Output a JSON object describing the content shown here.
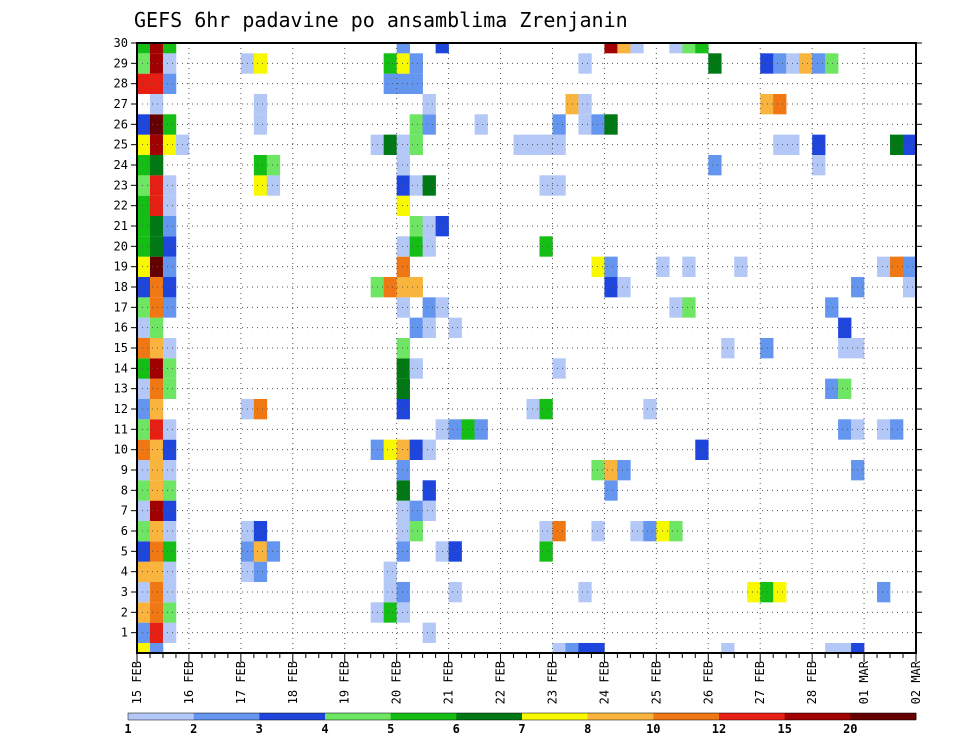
{
  "chart_data": {
    "type": "heatmap",
    "title": "GEFS 6hr padavine po ansamblima Zrenjanin",
    "xlabel": "",
    "ylabel": "",
    "x_range": [
      15,
      30
    ],
    "y_range": [
      0,
      30
    ],
    "y_ticks": [
      1,
      2,
      3,
      4,
      5,
      6,
      7,
      8,
      9,
      10,
      11,
      12,
      13,
      14,
      15,
      16,
      17,
      18,
      19,
      20,
      21,
      22,
      23,
      24,
      25,
      26,
      27,
      28,
      29,
      30
    ],
    "x_ticks": [
      {
        "x": 15,
        "label": "15 FEB"
      },
      {
        "x": 16,
        "label": "16 FEB"
      },
      {
        "x": 17,
        "label": "17 FEB"
      },
      {
        "x": 18,
        "label": "18 FEB"
      },
      {
        "x": 19,
        "label": "19 FEB"
      },
      {
        "x": 20,
        "label": "20 FEB"
      },
      {
        "x": 21,
        "label": "21 FEB"
      },
      {
        "x": 22,
        "label": "22 FEB"
      },
      {
        "x": 23,
        "label": "23 FEB"
      },
      {
        "x": 24,
        "label": "24 FEB"
      },
      {
        "x": 25,
        "label": "25 FEB"
      },
      {
        "x": 26,
        "label": "26 FEB"
      },
      {
        "x": 27,
        "label": "27 FEB"
      },
      {
        "x": 28,
        "label": "28 FEB"
      },
      {
        "x": 29,
        "label": "01 MAR"
      },
      {
        "x": 30,
        "label": "02 MAR"
      }
    ],
    "grid": true,
    "colorbar": {
      "labels": [
        "1",
        "2",
        "3",
        "4",
        "5",
        "6",
        "7",
        "8",
        "10",
        "12",
        "15",
        "20"
      ],
      "colors": [
        "#b4c8f8",
        "#6496f0",
        "#1e46dc",
        "#6ee664",
        "#14be14",
        "#007814",
        "#f8f800",
        "#f8b43c",
        "#f07814",
        "#e61e14",
        "#a00000",
        "#640000"
      ]
    },
    "cells": [
      [
        15.0,
        0,
        "#f8f800"
      ],
      [
        15.25,
        0,
        "#6496f0"
      ],
      [
        23.0,
        0,
        "#b4c8f8"
      ],
      [
        23.25,
        0,
        "#6496f0"
      ],
      [
        23.5,
        0,
        "#1e46dc"
      ],
      [
        23.75,
        0,
        "#1e46dc"
      ],
      [
        26.25,
        0,
        "#b4c8f8"
      ],
      [
        28.25,
        0,
        "#b4c8f8"
      ],
      [
        28.5,
        0,
        "#b4c8f8"
      ],
      [
        28.75,
        0,
        "#1e46dc"
      ],
      [
        15.0,
        1,
        "#6496f0"
      ],
      [
        15.25,
        1,
        "#e61e14"
      ],
      [
        15.5,
        1,
        "#b4c8f8"
      ],
      [
        20.5,
        1,
        "#b4c8f8"
      ],
      [
        15.0,
        2,
        "#f8b43c"
      ],
      [
        15.25,
        2,
        "#f07814"
      ],
      [
        15.5,
        2,
        "#6ee664"
      ],
      [
        19.5,
        2,
        "#b4c8f8"
      ],
      [
        19.75,
        2,
        "#14be14"
      ],
      [
        20.0,
        2,
        "#b4c8f8"
      ],
      [
        15.0,
        3,
        "#b4c8f8"
      ],
      [
        15.25,
        3,
        "#f07814"
      ],
      [
        15.5,
        3,
        "#b4c8f8"
      ],
      [
        19.75,
        3,
        "#b4c8f8"
      ],
      [
        20.0,
        3,
        "#6496f0"
      ],
      [
        21.0,
        3,
        "#b4c8f8"
      ],
      [
        23.5,
        3,
        "#b4c8f8"
      ],
      [
        26.75,
        3,
        "#f8f800"
      ],
      [
        27.0,
        3,
        "#14be14"
      ],
      [
        27.25,
        3,
        "#f8f800"
      ],
      [
        29.25,
        3,
        "#6496f0"
      ],
      [
        15.0,
        4,
        "#f8b43c"
      ],
      [
        15.25,
        4,
        "#f8b43c"
      ],
      [
        15.5,
        4,
        "#b4c8f8"
      ],
      [
        17.0,
        4,
        "#b4c8f8"
      ],
      [
        17.25,
        4,
        "#6496f0"
      ],
      [
        19.75,
        4,
        "#b4c8f8"
      ],
      [
        15.0,
        5,
        "#1e46dc"
      ],
      [
        15.25,
        5,
        "#f07814"
      ],
      [
        15.5,
        5,
        "#14be14"
      ],
      [
        17.0,
        5,
        "#6496f0"
      ],
      [
        17.25,
        5,
        "#f8b43c"
      ],
      [
        17.5,
        5,
        "#6496f0"
      ],
      [
        20.0,
        5,
        "#6496f0"
      ],
      [
        20.75,
        5,
        "#b4c8f8"
      ],
      [
        21.0,
        5,
        "#1e46dc"
      ],
      [
        22.75,
        5,
        "#14be14"
      ],
      [
        15.0,
        6,
        "#6ee664"
      ],
      [
        15.25,
        6,
        "#f8b43c"
      ],
      [
        15.5,
        6,
        "#b4c8f8"
      ],
      [
        17.0,
        6,
        "#b4c8f8"
      ],
      [
        17.25,
        6,
        "#1e46dc"
      ],
      [
        20.0,
        6,
        "#b4c8f8"
      ],
      [
        20.25,
        6,
        "#6ee664"
      ],
      [
        22.75,
        6,
        "#b4c8f8"
      ],
      [
        23.0,
        6,
        "#f07814"
      ],
      [
        23.75,
        6,
        "#b4c8f8"
      ],
      [
        24.5,
        6,
        "#b4c8f8"
      ],
      [
        24.75,
        6,
        "#6496f0"
      ],
      [
        25.0,
        6,
        "#f8f800"
      ],
      [
        25.25,
        6,
        "#6ee664"
      ],
      [
        15.0,
        7,
        "#b4c8f8"
      ],
      [
        15.25,
        7,
        "#a00000"
      ],
      [
        15.5,
        7,
        "#1e46dc"
      ],
      [
        20.0,
        7,
        "#b4c8f8"
      ],
      [
        20.25,
        7,
        "#6496f0"
      ],
      [
        20.5,
        7,
        "#b4c8f8"
      ],
      [
        15.0,
        8,
        "#6ee664"
      ],
      [
        15.25,
        8,
        "#f8b43c"
      ],
      [
        15.5,
        8,
        "#6ee664"
      ],
      [
        20.0,
        8,
        "#007814"
      ],
      [
        20.5,
        8,
        "#1e46dc"
      ],
      [
        24.0,
        8,
        "#6496f0"
      ],
      [
        15.0,
        9,
        "#b4c8f8"
      ],
      [
        15.25,
        9,
        "#f8b43c"
      ],
      [
        15.5,
        9,
        "#b4c8f8"
      ],
      [
        20.0,
        9,
        "#6496f0"
      ],
      [
        23.75,
        9,
        "#6ee664"
      ],
      [
        24.0,
        9,
        "#f8b43c"
      ],
      [
        24.25,
        9,
        "#6496f0"
      ],
      [
        28.75,
        9,
        "#6496f0"
      ],
      [
        15.0,
        10,
        "#f07814"
      ],
      [
        15.25,
        10,
        "#f8b43c"
      ],
      [
        15.5,
        10,
        "#1e46dc"
      ],
      [
        19.5,
        10,
        "#6496f0"
      ],
      [
        19.75,
        10,
        "#f8f800"
      ],
      [
        20.0,
        10,
        "#f8b43c"
      ],
      [
        20.25,
        10,
        "#1e46dc"
      ],
      [
        20.5,
        10,
        "#b4c8f8"
      ],
      [
        25.75,
        10,
        "#1e46dc"
      ],
      [
        15.0,
        11,
        "#6ee664"
      ],
      [
        15.25,
        11,
        "#e61e14"
      ],
      [
        15.5,
        11,
        "#b4c8f8"
      ],
      [
        20.75,
        11,
        "#b4c8f8"
      ],
      [
        21.0,
        11,
        "#6496f0"
      ],
      [
        21.25,
        11,
        "#14be14"
      ],
      [
        21.5,
        11,
        "#6496f0"
      ],
      [
        28.5,
        11,
        "#6496f0"
      ],
      [
        28.75,
        11,
        "#b4c8f8"
      ],
      [
        29.25,
        11,
        "#b4c8f8"
      ],
      [
        29.5,
        11,
        "#6496f0"
      ],
      [
        15.0,
        12,
        "#6496f0"
      ],
      [
        15.25,
        12,
        "#f8b43c"
      ],
      [
        17.0,
        12,
        "#b4c8f8"
      ],
      [
        17.25,
        12,
        "#f07814"
      ],
      [
        20.0,
        12,
        "#1e46dc"
      ],
      [
        22.5,
        12,
        "#b4c8f8"
      ],
      [
        22.75,
        12,
        "#14be14"
      ],
      [
        24.75,
        12,
        "#b4c8f8"
      ],
      [
        15.0,
        13,
        "#b4c8f8"
      ],
      [
        15.25,
        13,
        "#f07814"
      ],
      [
        15.5,
        13,
        "#6ee664"
      ],
      [
        20.0,
        13,
        "#007814"
      ],
      [
        28.25,
        13,
        "#6496f0"
      ],
      [
        28.5,
        13,
        "#6ee664"
      ],
      [
        15.0,
        14,
        "#14be14"
      ],
      [
        15.25,
        14,
        "#a00000"
      ],
      [
        15.5,
        14,
        "#6ee664"
      ],
      [
        20.0,
        14,
        "#007814"
      ],
      [
        20.25,
        14,
        "#b4c8f8"
      ],
      [
        23.0,
        14,
        "#b4c8f8"
      ],
      [
        15.0,
        15,
        "#f07814"
      ],
      [
        15.25,
        15,
        "#f8b43c"
      ],
      [
        15.5,
        15,
        "#b4c8f8"
      ],
      [
        20.0,
        15,
        "#6ee664"
      ],
      [
        26.25,
        15,
        "#b4c8f8"
      ],
      [
        27.0,
        15,
        "#6496f0"
      ],
      [
        28.5,
        15,
        "#b4c8f8"
      ],
      [
        28.75,
        15,
        "#b4c8f8"
      ],
      [
        15.0,
        16,
        "#b4c8f8"
      ],
      [
        15.25,
        16,
        "#6ee664"
      ],
      [
        20.25,
        16,
        "#6496f0"
      ],
      [
        20.5,
        16,
        "#b4c8f8"
      ],
      [
        21.0,
        16,
        "#b4c8f8"
      ],
      [
        28.5,
        16,
        "#1e46dc"
      ],
      [
        15.0,
        17,
        "#6ee664"
      ],
      [
        15.25,
        17,
        "#f07814"
      ],
      [
        15.5,
        17,
        "#6496f0"
      ],
      [
        20.0,
        17,
        "#b4c8f8"
      ],
      [
        20.5,
        17,
        "#6496f0"
      ],
      [
        20.75,
        17,
        "#b4c8f8"
      ],
      [
        25.25,
        17,
        "#b4c8f8"
      ],
      [
        25.5,
        17,
        "#6ee664"
      ],
      [
        28.25,
        17,
        "#6496f0"
      ],
      [
        15.0,
        18,
        "#1e46dc"
      ],
      [
        15.25,
        18,
        "#f07814"
      ],
      [
        15.5,
        18,
        "#1e46dc"
      ],
      [
        19.5,
        18,
        "#6ee664"
      ],
      [
        19.75,
        18,
        "#f07814"
      ],
      [
        20.0,
        18,
        "#f8b43c"
      ],
      [
        20.25,
        18,
        "#f8b43c"
      ],
      [
        24.0,
        18,
        "#1e46dc"
      ],
      [
        24.25,
        18,
        "#b4c8f8"
      ],
      [
        28.75,
        18,
        "#6496f0"
      ],
      [
        29.75,
        18,
        "#b4c8f8"
      ],
      [
        15.0,
        19,
        "#f8f800"
      ],
      [
        15.25,
        19,
        "#640000"
      ],
      [
        15.5,
        19,
        "#6496f0"
      ],
      [
        20.0,
        19,
        "#f07814"
      ],
      [
        23.75,
        19,
        "#f8f800"
      ],
      [
        24.0,
        19,
        "#6496f0"
      ],
      [
        25.0,
        19,
        "#b4c8f8"
      ],
      [
        25.5,
        19,
        "#b4c8f8"
      ],
      [
        26.5,
        19,
        "#b4c8f8"
      ],
      [
        29.25,
        19,
        "#b4c8f8"
      ],
      [
        29.5,
        19,
        "#f07814"
      ],
      [
        29.75,
        19,
        "#6496f0"
      ],
      [
        15.0,
        20,
        "#14be14"
      ],
      [
        15.25,
        20,
        "#007814"
      ],
      [
        15.5,
        20,
        "#1e46dc"
      ],
      [
        20.0,
        20,
        "#b4c8f8"
      ],
      [
        20.25,
        20,
        "#14be14"
      ],
      [
        20.5,
        20,
        "#b4c8f8"
      ],
      [
        22.75,
        20,
        "#14be14"
      ],
      [
        15.0,
        21,
        "#14be14"
      ],
      [
        15.25,
        21,
        "#007814"
      ],
      [
        15.5,
        21,
        "#6496f0"
      ],
      [
        20.25,
        21,
        "#6ee664"
      ],
      [
        20.5,
        21,
        "#b4c8f8"
      ],
      [
        20.75,
        21,
        "#1e46dc"
      ],
      [
        15.0,
        22,
        "#14be14"
      ],
      [
        15.25,
        22,
        "#e61e14"
      ],
      [
        15.5,
        22,
        "#b4c8f8"
      ],
      [
        20.0,
        22,
        "#f8f800"
      ],
      [
        15.0,
        23,
        "#6ee664"
      ],
      [
        15.25,
        23,
        "#e61e14"
      ],
      [
        15.5,
        23,
        "#b4c8f8"
      ],
      [
        17.25,
        23,
        "#f8f800"
      ],
      [
        17.5,
        23,
        "#b4c8f8"
      ],
      [
        20.0,
        23,
        "#1e46dc"
      ],
      [
        20.25,
        23,
        "#b4c8f8"
      ],
      [
        20.5,
        23,
        "#007814"
      ],
      [
        22.75,
        23,
        "#b4c8f8"
      ],
      [
        23.0,
        23,
        "#b4c8f8"
      ],
      [
        15.0,
        24,
        "#14be14"
      ],
      [
        15.25,
        24,
        "#007814"
      ],
      [
        17.25,
        24,
        "#14be14"
      ],
      [
        17.5,
        24,
        "#6ee664"
      ],
      [
        20.0,
        24,
        "#b4c8f8"
      ],
      [
        26.0,
        24,
        "#6496f0"
      ],
      [
        28.0,
        24,
        "#b4c8f8"
      ],
      [
        15.0,
        25,
        "#f8f800"
      ],
      [
        15.25,
        25,
        "#a00000"
      ],
      [
        15.5,
        25,
        "#f8f800"
      ],
      [
        15.75,
        25,
        "#b4c8f8"
      ],
      [
        19.5,
        25,
        "#b4c8f8"
      ],
      [
        19.75,
        25,
        "#007814"
      ],
      [
        20.0,
        25,
        "#b4c8f8"
      ],
      [
        20.25,
        25,
        "#6ee664"
      ],
      [
        22.25,
        25,
        "#b4c8f8"
      ],
      [
        22.5,
        25,
        "#b4c8f8"
      ],
      [
        22.75,
        25,
        "#b4c8f8"
      ],
      [
        23.0,
        25,
        "#b4c8f8"
      ],
      [
        27.25,
        25,
        "#b4c8f8"
      ],
      [
        27.5,
        25,
        "#b4c8f8"
      ],
      [
        28.0,
        25,
        "#1e46dc"
      ],
      [
        29.5,
        25,
        "#007814"
      ],
      [
        29.75,
        25,
        "#1e46dc"
      ],
      [
        15.0,
        26,
        "#1e46dc"
      ],
      [
        15.25,
        26,
        "#640000"
      ],
      [
        15.5,
        26,
        "#14be14"
      ],
      [
        17.25,
        26,
        "#b4c8f8"
      ],
      [
        20.25,
        26,
        "#6ee664"
      ],
      [
        20.5,
        26,
        "#6496f0"
      ],
      [
        21.5,
        26,
        "#b4c8f8"
      ],
      [
        23.0,
        26,
        "#6496f0"
      ],
      [
        23.5,
        26,
        "#b4c8f8"
      ],
      [
        23.75,
        26,
        "#6496f0"
      ],
      [
        24.0,
        26,
        "#007814"
      ],
      [
        15.25,
        27,
        "#b4c8f8"
      ],
      [
        17.25,
        27,
        "#b4c8f8"
      ],
      [
        20.5,
        27,
        "#b4c8f8"
      ],
      [
        23.25,
        27,
        "#f8b43c"
      ],
      [
        23.5,
        27,
        "#b4c8f8"
      ],
      [
        27.0,
        27,
        "#f8b43c"
      ],
      [
        27.25,
        27,
        "#f07814"
      ],
      [
        15.0,
        28,
        "#e61e14"
      ],
      [
        15.25,
        28,
        "#e61e14"
      ],
      [
        15.5,
        28,
        "#6496f0"
      ],
      [
        19.75,
        28,
        "#6496f0"
      ],
      [
        20.0,
        28,
        "#6496f0"
      ],
      [
        20.25,
        28,
        "#6496f0"
      ],
      [
        15.0,
        29,
        "#6ee664"
      ],
      [
        15.25,
        29,
        "#a00000"
      ],
      [
        15.5,
        29,
        "#b4c8f8"
      ],
      [
        17.0,
        29,
        "#b4c8f8"
      ],
      [
        17.25,
        29,
        "#f8f800"
      ],
      [
        19.75,
        29,
        "#14be14"
      ],
      [
        20.0,
        29,
        "#f8f800"
      ],
      [
        20.25,
        29,
        "#6496f0"
      ],
      [
        23.5,
        29,
        "#b4c8f8"
      ],
      [
        26.0,
        29,
        "#007814"
      ],
      [
        27.0,
        29,
        "#1e46dc"
      ],
      [
        27.25,
        29,
        "#6496f0"
      ],
      [
        27.5,
        29,
        "#b4c8f8"
      ],
      [
        27.75,
        29,
        "#f8b43c"
      ],
      [
        28.0,
        29,
        "#6496f0"
      ],
      [
        28.25,
        29,
        "#6ee664"
      ],
      [
        15.0,
        30,
        "#14be14"
      ],
      [
        15.25,
        30,
        "#a00000"
      ],
      [
        15.5,
        30,
        "#14be14"
      ],
      [
        20.0,
        30,
        "#6496f0"
      ],
      [
        20.75,
        30,
        "#1e46dc"
      ],
      [
        24.0,
        30,
        "#a00000"
      ],
      [
        24.25,
        30,
        "#f8b43c"
      ],
      [
        24.5,
        30,
        "#b4c8f8"
      ],
      [
        25.25,
        30,
        "#b4c8f8"
      ],
      [
        25.5,
        30,
        "#6ee664"
      ],
      [
        25.75,
        30,
        "#14be14"
      ]
    ]
  }
}
